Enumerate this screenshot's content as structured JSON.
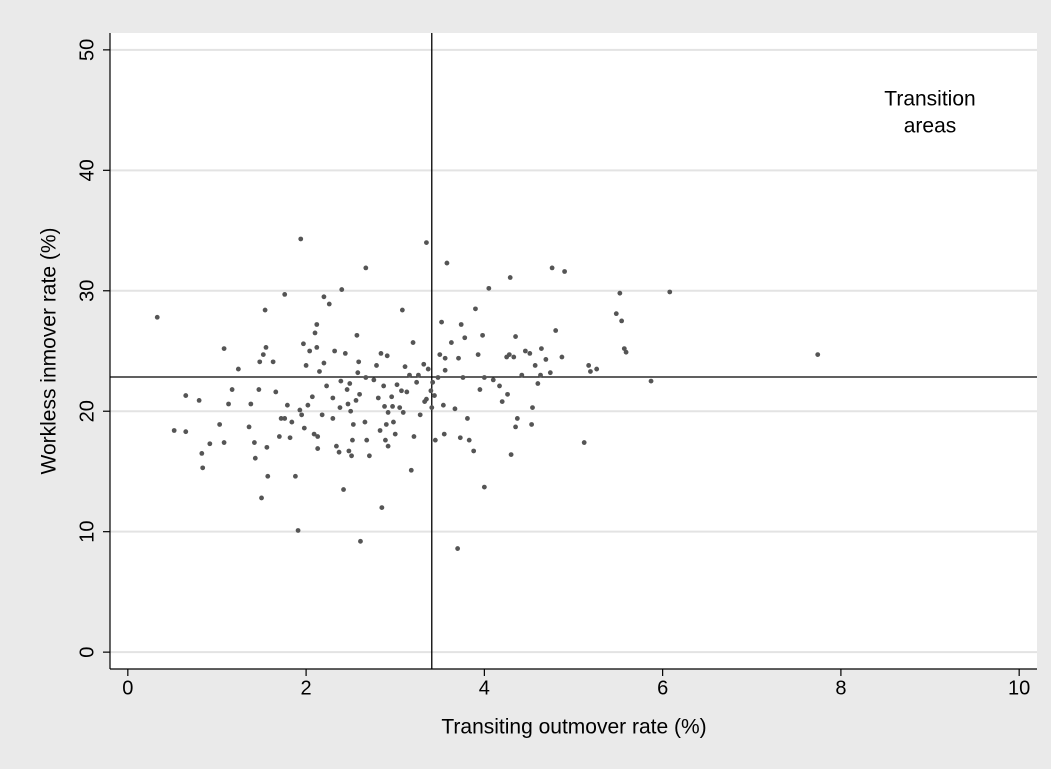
{
  "chart_data": {
    "type": "scatter",
    "x_label": "Transiting outmover rate (%)",
    "y_label": "Workless inmover rate (%)",
    "annotation": [
      "Transition",
      "areas"
    ],
    "xlim": [
      -0.2,
      10.2
    ],
    "ylim": [
      -1.4,
      51.4
    ],
    "xticks": [
      0,
      2,
      4,
      6,
      8,
      10
    ],
    "yticks": [
      0,
      10,
      20,
      30,
      40,
      50
    ],
    "grid": true,
    "xline": 3.41,
    "yline": 22.84,
    "series": [
      {
        "color": "#555555",
        "x": [
          0.33,
          0.52,
          0.65,
          0.65,
          0.8,
          0.83,
          0.84,
          0.92,
          1.03,
          1.08,
          1.08,
          1.13,
          1.17,
          1.24,
          1.36,
          1.38,
          1.42,
          1.43,
          1.47,
          1.48,
          1.5,
          1.52,
          1.54,
          1.55,
          1.56,
          1.57,
          1.63,
          1.66,
          1.7,
          1.72,
          1.76,
          1.76,
          1.79,
          1.82,
          1.84,
          1.88,
          1.91,
          1.93,
          1.94,
          1.95,
          1.97,
          1.98,
          2.0,
          2.02,
          2.04,
          2.07,
          2.09,
          2.1,
          2.12,
          2.12,
          2.13,
          2.13,
          2.15,
          2.18,
          2.2,
          2.2,
          2.23,
          2.26,
          2.3,
          2.3,
          2.32,
          2.34,
          2.37,
          2.38,
          2.39,
          2.4,
          2.42,
          2.44,
          2.46,
          2.47,
          2.48,
          2.49,
          2.5,
          2.51,
          2.52,
          2.53,
          2.56,
          2.57,
          2.58,
          2.59,
          2.6,
          2.61,
          2.66,
          2.67,
          2.67,
          2.68,
          2.71,
          2.76,
          2.79,
          2.81,
          2.83,
          2.84,
          2.85,
          2.87,
          2.88,
          2.89,
          2.9,
          2.91,
          2.92,
          2.92,
          2.96,
          2.97,
          2.98,
          3.0,
          3.02,
          3.05,
          3.07,
          3.08,
          3.09,
          3.11,
          3.13,
          3.16,
          3.18,
          3.2,
          3.21,
          3.24,
          3.26,
          3.28,
          3.32,
          3.33,
          3.35,
          3.35,
          3.37,
          3.4,
          3.41,
          3.42,
          3.44,
          3.45,
          3.48,
          3.5,
          3.52,
          3.54,
          3.55,
          3.56,
          3.56,
          3.58,
          3.63,
          3.67,
          3.7,
          3.71,
          3.73,
          3.74,
          3.76,
          3.78,
          3.81,
          3.83,
          3.88,
          3.9,
          3.93,
          3.95,
          3.98,
          4.0,
          4.0,
          4.05,
          4.1,
          4.17,
          4.2,
          4.25,
          4.26,
          4.28,
          4.29,
          4.3,
          4.33,
          4.35,
          4.35,
          4.37,
          4.42,
          4.46,
          4.51,
          4.53,
          4.54,
          4.57,
          4.6,
          4.63,
          4.64,
          4.69,
          4.74,
          4.76,
          4.8,
          4.87,
          4.9,
          5.12,
          5.17,
          5.19,
          5.26,
          5.48,
          5.52,
          5.54,
          5.57,
          5.59,
          5.87,
          6.08,
          7.74
        ],
        "values": [
          27.8,
          18.4,
          18.3,
          21.3,
          20.9,
          16.5,
          15.3,
          17.3,
          18.9,
          25.2,
          17.4,
          20.6,
          21.8,
          23.5,
          18.7,
          20.6,
          17.4,
          16.1,
          21.8,
          24.1,
          12.8,
          24.7,
          28.4,
          25.3,
          17.0,
          14.6,
          24.1,
          21.6,
          17.9,
          19.4,
          29.7,
          19.4,
          20.5,
          17.8,
          19.1,
          14.6,
          10.1,
          20.1,
          34.3,
          19.7,
          25.6,
          18.6,
          23.8,
          20.5,
          25.0,
          21.2,
          18.1,
          26.5,
          27.2,
          25.3,
          17.9,
          16.9,
          23.3,
          19.7,
          24.0,
          29.5,
          22.1,
          28.9,
          21.1,
          19.4,
          25.0,
          17.1,
          16.6,
          20.3,
          22.5,
          30.1,
          13.5,
          24.8,
          21.8,
          20.6,
          16.7,
          22.3,
          20.0,
          16.3,
          17.6,
          18.9,
          20.9,
          26.3,
          23.2,
          24.1,
          21.4,
          9.2,
          19.1,
          31.9,
          22.8,
          17.6,
          16.3,
          22.6,
          23.8,
          21.1,
          18.4,
          24.8,
          12.0,
          22.1,
          20.4,
          17.6,
          18.9,
          24.6,
          19.9,
          17.1,
          21.2,
          20.4,
          19.1,
          18.1,
          22.2,
          20.3,
          21.7,
          28.4,
          19.9,
          23.7,
          21.6,
          23.0,
          15.1,
          25.7,
          17.9,
          22.4,
          23.0,
          19.7,
          23.9,
          20.8,
          21.0,
          34.0,
          23.5,
          21.7,
          20.3,
          22.4,
          21.3,
          17.6,
          22.8,
          24.7,
          27.4,
          20.5,
          18.1,
          24.4,
          23.4,
          32.3,
          25.7,
          20.2,
          8.6,
          24.4,
          17.8,
          27.2,
          22.8,
          26.1,
          19.4,
          17.6,
          16.7,
          28.5,
          24.7,
          21.8,
          26.3,
          13.7,
          22.8,
          30.2,
          22.6,
          22.1,
          20.8,
          24.5,
          21.4,
          24.7,
          31.1,
          16.4,
          24.5,
          26.2,
          18.7,
          19.4,
          23.0,
          25.0,
          24.8,
          18.9,
          20.3,
          23.8,
          22.3,
          23.0,
          25.2,
          24.3,
          23.2,
          31.9,
          26.7,
          24.5,
          31.6,
          17.4,
          23.8,
          23.3,
          23.5,
          28.1,
          29.8,
          27.5,
          25.2,
          24.9,
          22.5,
          29.9,
          24.7
        ]
      }
    ]
  }
}
